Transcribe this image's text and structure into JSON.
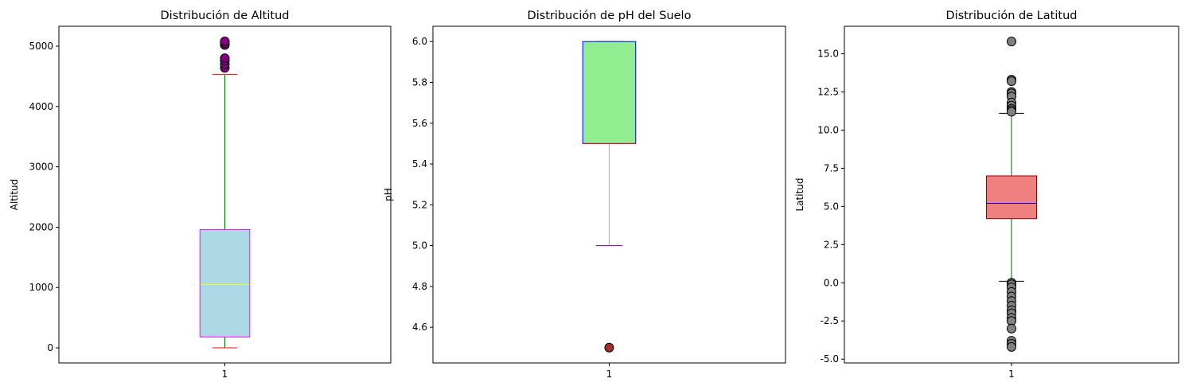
{
  "chart_data": [
    {
      "type": "boxplot",
      "title": "Distribución de Altitud",
      "xlabel": "",
      "ylabel": "Altitud",
      "categories": [
        "1"
      ],
      "ylim": [
        -250,
        5330
      ],
      "yticks": [
        0,
        1000,
        2000,
        3000,
        4000,
        5000
      ],
      "box": {
        "whisker_low": 0,
        "q1": 180,
        "median": 1050,
        "q3": 1960,
        "whisker_high": 4530
      },
      "outliers": [
        4640,
        4700,
        4760,
        4800,
        5020,
        5050,
        5080
      ],
      "colors": {
        "box_fill": "#add8e6",
        "box_edge": "#ff00ff",
        "median": "#ffff00",
        "whisker": "#008000",
        "cap": "#ff0000",
        "flier": "#800080"
      }
    },
    {
      "type": "boxplot",
      "title": "Distribución de pH del Suelo",
      "xlabel": "",
      "ylabel": "pH",
      "categories": [
        "1"
      ],
      "ylim": [
        4.425,
        6.075
      ],
      "yticks": [
        4.6,
        4.8,
        5.0,
        5.2,
        5.4,
        5.6,
        5.8,
        6.0
      ],
      "box": {
        "whisker_low": 5.0,
        "q1": 5.5,
        "median": 5.5,
        "q3": 6.0,
        "whisker_high": 6.0
      },
      "outliers": [
        4.5
      ],
      "colors": {
        "box_fill": "#90ee90",
        "box_edge": "#0000ff",
        "median": "#ff0000",
        "whisker": "#ffa500",
        "cap": "#800080",
        "flier": "#a52a2a"
      }
    },
    {
      "type": "boxplot",
      "title": "Distribución de Latitud",
      "xlabel": "",
      "ylabel": "Latitud",
      "categories": [
        "1"
      ],
      "ylim": [
        -5.25,
        16.8
      ],
      "yticks": [
        -5.0,
        -2.5,
        0.0,
        2.5,
        5.0,
        7.5,
        10.0,
        12.5,
        15.0
      ],
      "box": {
        "whisker_low": 0.1,
        "q1": 4.2,
        "median": 5.2,
        "q3": 7.0,
        "whisker_high": 11.1
      },
      "outliers": [
        15.8,
        13.3,
        13.2,
        12.5,
        12.4,
        12.2,
        11.8,
        11.6,
        11.4,
        11.3,
        11.2,
        0.0,
        -0.1,
        -0.3,
        -0.6,
        -0.9,
        -1.2,
        -1.5,
        -1.8,
        -2.0,
        -2.3,
        -2.5,
        -3.0,
        -3.8,
        -4.0,
        -4.2
      ],
      "colors": {
        "box_fill": "#f08080",
        "box_edge": "#8b0000",
        "median": "#0000ff",
        "whisker": "#006400",
        "cap": "#000000",
        "flier": "#808080"
      }
    }
  ]
}
